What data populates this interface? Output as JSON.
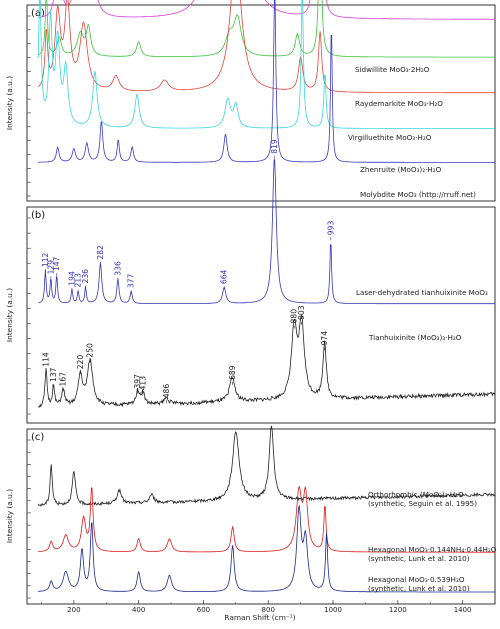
{
  "figure": {
    "shared_x_axis": {
      "label": "Raman Shift (cm⁻¹)",
      "ticks": [
        200,
        400,
        600,
        800,
        1000,
        1200,
        1400
      ],
      "range": [
        80,
        1500
      ]
    },
    "y_axis_label": "Intensity (a.u.)"
  },
  "chart_data": [
    {
      "panel": "(a)",
      "type": "line",
      "xlabel": "",
      "ylabel": "Intensity (a.u.)",
      "xlim": [
        80,
        1500
      ],
      "series": [
        {
          "name": "Sidwillite MoO₃·2H₂O",
          "color": "#d63fd6",
          "baseline": 0.96,
          "peaks": [
            [
              140,
              0.08,
              8
            ],
            [
              160,
              0.12,
              10
            ],
            [
              205,
              0.15,
              14
            ],
            [
              255,
              0.25,
              15
            ],
            [
              620,
              0.3,
              30
            ],
            [
              725,
              0.55,
              30
            ],
            [
              935,
              0.12,
              8
            ],
            [
              965,
              0.9,
              5
            ]
          ]
        },
        {
          "name": "Raydemarkite MoO₃·H₂O",
          "color": "#3bc43b",
          "baseline": 0.76,
          "peaks": [
            [
              115,
              0.35,
              4
            ],
            [
              155,
              0.1,
              8
            ],
            [
              220,
              0.12,
              12
            ],
            [
              245,
              0.15,
              8
            ],
            [
              400,
              0.08,
              8
            ],
            [
              680,
              0.1,
              14
            ],
            [
              705,
              0.2,
              14
            ],
            [
              890,
              0.12,
              8
            ],
            [
              960,
              0.75,
              5
            ]
          ]
        },
        {
          "name": "Virgilluethite MoO₃·H₂O",
          "color": "#e0453a",
          "baseline": 0.57,
          "peaks": [
            [
              115,
              0.3,
              5
            ],
            [
              150,
              0.4,
              10
            ],
            [
              180,
              0.45,
              10
            ],
            [
              230,
              0.35,
              14
            ],
            [
              330,
              0.08,
              12
            ],
            [
              480,
              0.06,
              15
            ],
            [
              700,
              0.75,
              20
            ],
            [
              900,
              0.18,
              8
            ],
            [
              960,
              0.32,
              6
            ]
          ]
        },
        {
          "name": "Zhenruite (MoO₃)₂·H₂O",
          "color": "#3bd6dc",
          "baseline": 0.38,
          "peaks": [
            [
              95,
              0.7,
              5
            ],
            [
              128,
              0.55,
              6
            ],
            [
              150,
              0.45,
              8
            ],
            [
              175,
              0.3,
              8
            ],
            [
              265,
              0.3,
              8
            ],
            [
              395,
              0.18,
              8
            ],
            [
              675,
              0.15,
              10
            ],
            [
              700,
              0.12,
              8
            ],
            [
              905,
              0.75,
              4
            ],
            [
              975,
              0.3,
              4
            ]
          ]
        },
        {
          "name": "Molybdite MoO₃ (http://rruff.net)",
          "color": "#3a3ac4",
          "baseline": 0.2,
          "peaks": [
            [
              150,
              0.08,
              5
            ],
            [
              200,
              0.07,
              6
            ],
            [
              240,
              0.1,
              6
            ],
            [
              285,
              0.22,
              5
            ],
            [
              337,
              0.12,
              4
            ],
            [
              380,
              0.08,
              5
            ],
            [
              668,
              0.15,
              6
            ],
            [
              820,
              0.95,
              4
            ],
            [
              995,
              0.75,
              3
            ]
          ]
        }
      ]
    },
    {
      "panel": "(b)",
      "type": "line",
      "xlabel": "",
      "ylabel": "Intensity (a.u.)",
      "xlim": [
        80,
        1500
      ],
      "series": [
        {
          "name": "Laser-dehydrated tianhuixinite MoO₃",
          "color": "#3535b8",
          "baseline": 0.56,
          "peak_labels": [
            {
              "x": 112,
              "label": "112"
            },
            {
              "x": 129,
              "label": "129"
            },
            {
              "x": 147,
              "label": "147"
            },
            {
              "x": 194,
              "label": "194"
            },
            {
              "x": 213,
              "label": "213"
            },
            {
              "x": 236,
              "label": "236"
            },
            {
              "x": 282,
              "label": "282"
            },
            {
              "x": 336,
              "label": "336"
            },
            {
              "x": 377,
              "label": "377"
            },
            {
              "x": 664,
              "label": "664"
            },
            {
              "x": 819,
              "label": "819"
            },
            {
              "x": 993,
              "label": "993"
            }
          ],
          "peaks": [
            [
              112,
              0.16,
              3
            ],
            [
              129,
              0.12,
              3
            ],
            [
              147,
              0.14,
              3
            ],
            [
              194,
              0.07,
              3
            ],
            [
              213,
              0.06,
              3
            ],
            [
              236,
              0.08,
              3
            ],
            [
              282,
              0.2,
              5
            ],
            [
              336,
              0.12,
              4
            ],
            [
              377,
              0.06,
              4
            ],
            [
              664,
              0.08,
              6
            ],
            [
              819,
              0.72,
              7
            ],
            [
              993,
              0.32,
              3
            ]
          ]
        },
        {
          "name": "Tianhuixinite (MoO₃)₃·H₂O",
          "color": "#222222",
          "baseline": 0.05,
          "peak_labels": [
            {
              "x": 114,
              "label": "114"
            },
            {
              "x": 137,
              "label": "137"
            },
            {
              "x": 167,
              "label": "167"
            },
            {
              "x": 220,
              "label": "220"
            },
            {
              "x": 250,
              "label": "250"
            },
            {
              "x": 397,
              "label": "397"
            },
            {
              "x": 413,
              "label": "413"
            },
            {
              "x": 486,
              "label": "486"
            },
            {
              "x": 689,
              "label": "689"
            },
            {
              "x": 880,
              "label": "880"
            },
            {
              "x": 903,
              "label": "903"
            },
            {
              "x": 974,
              "label": "974"
            }
          ],
          "peaks": [
            [
              114,
              0.18,
              4
            ],
            [
              137,
              0.1,
              4
            ],
            [
              167,
              0.08,
              6
            ],
            [
              220,
              0.15,
              8
            ],
            [
              250,
              0.22,
              10
            ],
            [
              397,
              0.07,
              6
            ],
            [
              413,
              0.06,
              6
            ],
            [
              486,
              0.03,
              8
            ],
            [
              689,
              0.12,
              10
            ],
            [
              880,
              0.34,
              10
            ],
            [
              903,
              0.36,
              10
            ],
            [
              974,
              0.28,
              6
            ]
          ]
        }
      ]
    },
    {
      "panel": "(c)",
      "type": "line",
      "xlabel": "Raman Shift (cm⁻¹)",
      "ylabel": "Intensity (a.u.)",
      "xlim": [
        80,
        1500
      ],
      "series": [
        {
          "name": "Orthorhombic (MoO₃)₃·H₂O",
          "label_line2": "(synthetic, Seguin et al. 1995)",
          "color": "#222222",
          "baseline": 0.58,
          "peaks": [
            [
              130,
              0.25,
              4
            ],
            [
              200,
              0.2,
              6
            ],
            [
              340,
              0.08,
              8
            ],
            [
              440,
              0.05,
              8
            ],
            [
              700,
              0.42,
              12
            ],
            [
              810,
              0.45,
              8
            ]
          ]
        },
        {
          "name": "Hexagonal MoO₃·0.144NH₄·0.44H₂O",
          "label_line2": "(synthetic, Lunk et al. 2010)",
          "color": "#e01a1a",
          "baseline": 0.3,
          "peaks": [
            [
              130,
              0.06,
              6
            ],
            [
              175,
              0.1,
              10
            ],
            [
              230,
              0.2,
              8
            ],
            [
              255,
              0.38,
              5
            ],
            [
              400,
              0.08,
              6
            ],
            [
              495,
              0.08,
              8
            ],
            [
              690,
              0.15,
              6
            ],
            [
              895,
              0.35,
              10
            ],
            [
              915,
              0.32,
              8
            ],
            [
              975,
              0.28,
              4
            ]
          ]
        },
        {
          "name": "Hexagonal MoO₃·0.539H₂O",
          "label_line2": "(synthetic, Lunk et al. 2010)",
          "color": "#1a2a8a",
          "baseline": 0.06,
          "peaks": [
            [
              130,
              0.06,
              6
            ],
            [
              175,
              0.12,
              10
            ],
            [
              225,
              0.25,
              6
            ],
            [
              255,
              0.42,
              5
            ],
            [
              400,
              0.12,
              6
            ],
            [
              495,
              0.1,
              8
            ],
            [
              690,
              0.28,
              6
            ],
            [
              895,
              0.48,
              8
            ],
            [
              915,
              0.3,
              8
            ],
            [
              980,
              0.35,
              4
            ]
          ]
        }
      ]
    }
  ]
}
